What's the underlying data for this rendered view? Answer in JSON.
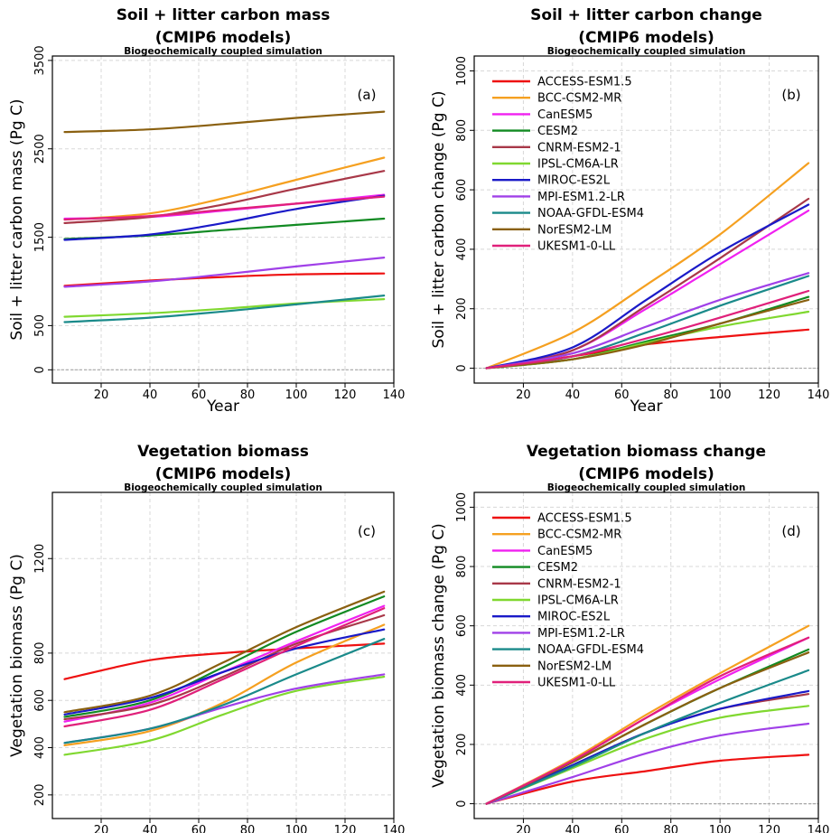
{
  "models": [
    {
      "name": "ACCESS-ESM1.5",
      "color": "#ee1111"
    },
    {
      "name": "BCC-CSM2-MR",
      "color": "#f5a020"
    },
    {
      "name": "CanESM5",
      "color": "#f020f0"
    },
    {
      "name": "CESM2",
      "color": "#118a22"
    },
    {
      "name": "CNRM-ESM2-1",
      "color": "#a83848"
    },
    {
      "name": "IPSL-CM6A-LR",
      "color": "#80d830"
    },
    {
      "name": "MIROC-ES2L",
      "color": "#1a1ac8"
    },
    {
      "name": "MPI-ESM1.2-LR",
      "color": "#a040e8"
    },
    {
      "name": "NOAA-GFDL-ESM4",
      "color": "#1a8a8a"
    },
    {
      "name": "NorESM2-LM",
      "color": "#8a6010"
    },
    {
      "name": "UKESM1-0-LL",
      "color": "#e0207a"
    }
  ],
  "chart_data": [
    {
      "type": "line",
      "panel": "(a)",
      "title": "Soil + litter carbon mass",
      "title2": "(CMIP6 models)",
      "subtitle": "Biogeochemically coupled simulation",
      "xlabel": "Year",
      "ylabel": "Soil + litter carbon mass (Pg C)",
      "xlim": [
        0,
        140
      ],
      "ylim": [
        -150,
        3550
      ],
      "xticks": [
        20,
        40,
        60,
        80,
        100,
        120,
        140
      ],
      "yticks": [
        0,
        500,
        1500,
        2500,
        3500
      ],
      "x": [
        5,
        40,
        70,
        100,
        136
      ],
      "legend": false,
      "series": [
        {
          "name": "ACCESS-ESM1.5",
          "values": [
            950,
            1010,
            1050,
            1080,
            1090
          ]
        },
        {
          "name": "BCC-CSM2-MR",
          "values": [
            1700,
            1770,
            1940,
            2150,
            2400
          ]
        },
        {
          "name": "CanESM5",
          "values": [
            1710,
            1730,
            1800,
            1880,
            1980
          ]
        },
        {
          "name": "CESM2",
          "values": [
            1480,
            1520,
            1580,
            1640,
            1710
          ]
        },
        {
          "name": "CNRM-ESM2-1",
          "values": [
            1660,
            1730,
            1870,
            2050,
            2250
          ]
        },
        {
          "name": "IPSL-CM6A-LR",
          "values": [
            600,
            640,
            690,
            750,
            800
          ]
        },
        {
          "name": "MIROC-ES2L",
          "values": [
            1470,
            1530,
            1660,
            1820,
            1970
          ]
        },
        {
          "name": "MPI-ESM1.2-LR",
          "values": [
            940,
            1000,
            1080,
            1170,
            1270
          ]
        },
        {
          "name": "NOAA-GFDL-ESM4",
          "values": [
            540,
            590,
            660,
            740,
            840
          ]
        },
        {
          "name": "NorESM2-LM",
          "values": [
            2690,
            2720,
            2780,
            2850,
            2920
          ]
        },
        {
          "name": "UKESM1-0-LL",
          "values": [
            1700,
            1740,
            1810,
            1880,
            1960
          ]
        }
      ]
    },
    {
      "type": "line",
      "panel": "(b)",
      "title": "Soil + litter carbon change",
      "title2": "(CMIP6 models)",
      "subtitle": "Biogeochemically coupled simulation",
      "xlabel": "Year",
      "ylabel": "Soil + litter carbon change (Pg C)",
      "xlim": [
        0,
        140
      ],
      "ylim": [
        -50,
        1050
      ],
      "xticks": [
        20,
        40,
        60,
        80,
        100,
        120,
        140
      ],
      "yticks": [
        0,
        200,
        400,
        600,
        800,
        1000
      ],
      "x": [
        5,
        40,
        70,
        100,
        136
      ],
      "legend": true,
      "series": [
        {
          "name": "ACCESS-ESM1.5",
          "values": [
            0,
            40,
            80,
            105,
            130
          ]
        },
        {
          "name": "BCC-CSM2-MR",
          "values": [
            0,
            120,
            280,
            450,
            690
          ]
        },
        {
          "name": "CanESM5",
          "values": [
            0,
            60,
            200,
            350,
            530
          ]
        },
        {
          "name": "CESM2",
          "values": [
            0,
            30,
            90,
            150,
            240
          ]
        },
        {
          "name": "CNRM-ESM2-1",
          "values": [
            0,
            60,
            210,
            370,
            570
          ]
        },
        {
          "name": "IPSL-CM6A-LR",
          "values": [
            0,
            30,
            85,
            140,
            190
          ]
        },
        {
          "name": "MIROC-ES2L",
          "values": [
            0,
            70,
            230,
            390,
            550
          ]
        },
        {
          "name": "MPI-ESM1.2-LR",
          "values": [
            0,
            50,
            140,
            230,
            320
          ]
        },
        {
          "name": "NOAA-GFDL-ESM4",
          "values": [
            0,
            40,
            120,
            210,
            310
          ]
        },
        {
          "name": "NorESM2-LM",
          "values": [
            0,
            30,
            80,
            150,
            230
          ]
        },
        {
          "name": "UKESM1-0-LL",
          "values": [
            0,
            40,
            100,
            170,
            260
          ]
        }
      ]
    },
    {
      "type": "line",
      "panel": "(c)",
      "title": "Vegetation biomass",
      "title2": "(CMIP6 models)",
      "subtitle": "Biogeochemically coupled simulation",
      "xlabel": "Year",
      "ylabel": "Vegetation biomass (Pg C)",
      "xlim": [
        0,
        140
      ],
      "ylim": [
        100,
        1480
      ],
      "xticks": [
        20,
        40,
        60,
        80,
        100,
        120,
        140
      ],
      "yticks": [
        200,
        400,
        600,
        800,
        1200
      ],
      "x": [
        5,
        40,
        70,
        100,
        136
      ],
      "legend": false,
      "series": [
        {
          "name": "ACCESS-ESM1.5",
          "values": [
            690,
            770,
            800,
            820,
            840
          ]
        },
        {
          "name": "BCC-CSM2-MR",
          "values": [
            410,
            470,
            590,
            760,
            920
          ]
        },
        {
          "name": "CanESM5",
          "values": [
            510,
            590,
            720,
            850,
            1000
          ]
        },
        {
          "name": "CESM2",
          "values": [
            530,
            600,
            740,
            890,
            1040
          ]
        },
        {
          "name": "CNRM-ESM2-1",
          "values": [
            520,
            580,
            700,
            840,
            960
          ]
        },
        {
          "name": "IPSL-CM6A-LR",
          "values": [
            370,
            430,
            540,
            640,
            700
          ]
        },
        {
          "name": "MIROC-ES2L",
          "values": [
            540,
            610,
            720,
            820,
            900
          ]
        },
        {
          "name": "MPI-ESM1.2-LR",
          "values": [
            420,
            480,
            570,
            650,
            710
          ]
        },
        {
          "name": "NOAA-GFDL-ESM4",
          "values": [
            420,
            480,
            580,
            710,
            860
          ]
        },
        {
          "name": "NorESM2-LM",
          "values": [
            550,
            620,
            760,
            910,
            1060
          ]
        },
        {
          "name": "UKESM1-0-LL",
          "values": [
            490,
            560,
            690,
            830,
            990
          ]
        }
      ]
    },
    {
      "type": "line",
      "panel": "(d)",
      "title": "Vegetation biomass change",
      "title2": "(CMIP6 models)",
      "subtitle": "Biogeochemically coupled simulation",
      "xlabel": "Year",
      "ylabel": "Vegetation biomass change (Pg C)",
      "xlim": [
        0,
        140
      ],
      "ylim": [
        -50,
        1050
      ],
      "xticks": [
        20,
        40,
        60,
        80,
        100,
        120,
        140
      ],
      "yticks": [
        0,
        200,
        400,
        600,
        800,
        1000
      ],
      "x": [
        5,
        40,
        70,
        100,
        136
      ],
      "legend": true,
      "series": [
        {
          "name": "ACCESS-ESM1.5",
          "values": [
            0,
            75,
            110,
            145,
            165
          ]
        },
        {
          "name": "BCC-CSM2-MR",
          "values": [
            0,
            150,
            300,
            440,
            600
          ]
        },
        {
          "name": "CanESM5",
          "values": [
            0,
            145,
            290,
            420,
            560
          ]
        },
        {
          "name": "CESM2",
          "values": [
            0,
            140,
            270,
            390,
            520
          ]
        },
        {
          "name": "CNRM-ESM2-1",
          "values": [
            0,
            130,
            240,
            320,
            370
          ]
        },
        {
          "name": "IPSL-CM6A-LR",
          "values": [
            0,
            120,
            220,
            290,
            330
          ]
        },
        {
          "name": "MIROC-ES2L",
          "values": [
            0,
            130,
            240,
            320,
            380
          ]
        },
        {
          "name": "MPI-ESM1.2-LR",
          "values": [
            0,
            90,
            170,
            230,
            270
          ]
        },
        {
          "name": "NOAA-GFDL-ESM4",
          "values": [
            0,
            125,
            240,
            340,
            450
          ]
        },
        {
          "name": "NorESM2-LM",
          "values": [
            0,
            140,
            270,
            390,
            510
          ]
        },
        {
          "name": "UKESM1-0-LL",
          "values": [
            0,
            145,
            290,
            430,
            560
          ]
        }
      ]
    }
  ]
}
